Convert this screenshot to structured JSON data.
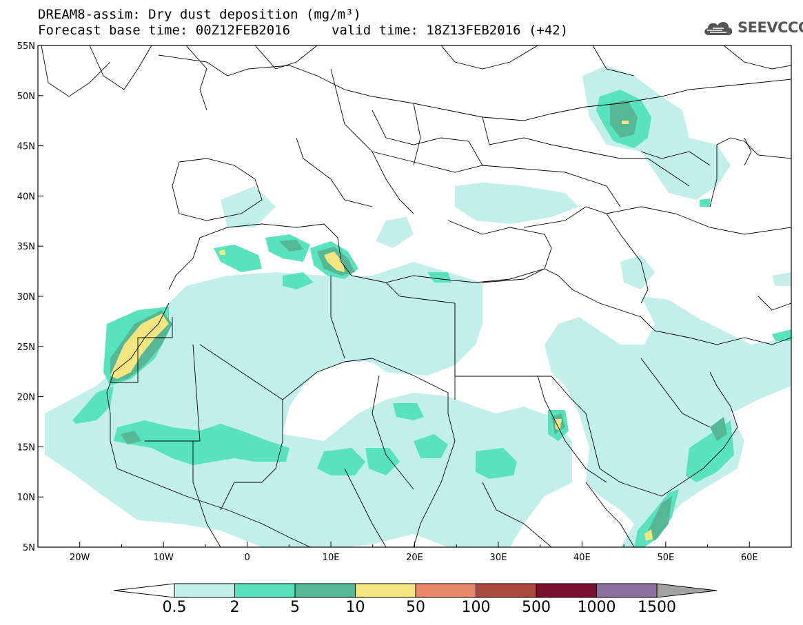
{
  "header": {
    "title_line1": "DREAM8-assim: Dry dust deposition (mg/m³)",
    "title_line2_base": "Forecast base time: 00Z12FEB2016",
    "title_line2_valid": "valid time: 18Z13FEB2016 (+42)"
  },
  "logo": {
    "text": "SEEVCCC",
    "icon": "cloud-logo-icon"
  },
  "map": {
    "lon_range": [
      -25,
      65
    ],
    "lat_range": [
      5,
      55
    ],
    "x_ticks": [
      "20W",
      "10W",
      "0",
      "10E",
      "20E",
      "30E",
      "40E",
      "50E",
      "60E"
    ],
    "y_ticks": [
      "55N",
      "50N",
      "45N",
      "40N",
      "35N",
      "30N",
      "25N",
      "20N",
      "15N",
      "10N",
      "5N"
    ]
  },
  "colorbar": {
    "labels": [
      "0.5",
      "2",
      "5",
      "10",
      "50",
      "100",
      "500",
      "1000",
      "1500"
    ],
    "colors": [
      "#c2efea",
      "#58e3bd",
      "#55b795",
      "#f3e680",
      "#e8896a",
      "#a94c3f",
      "#7b1030",
      "#8b6f9e"
    ],
    "below_color": "#ffffff",
    "above_color": "#a3a3a3"
  }
}
